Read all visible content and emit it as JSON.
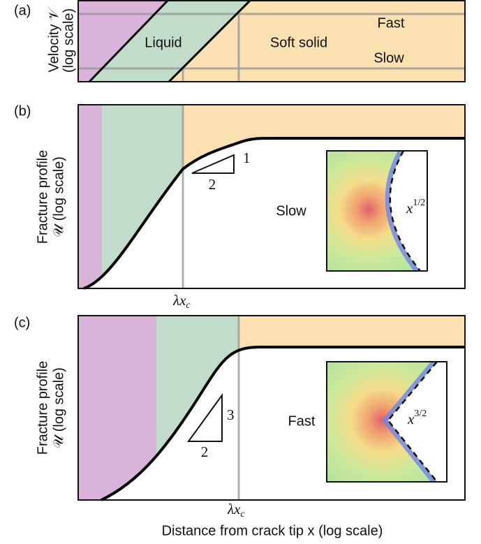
{
  "panels": [
    {
      "label": "(a)",
      "y_label": [
        "Velocity 𝒱",
        "(log scale)"
      ],
      "regions": [
        "Liquid",
        "Soft solid"
      ],
      "regimes": [
        "Fast",
        "Slow"
      ]
    },
    {
      "label": "(b)",
      "y_label": [
        "Fracture profile",
        "𝒰 (log scale)"
      ],
      "slope": {
        "rise": "1",
        "run": "2"
      },
      "marker": {
        "base": "λx",
        "sub": "c"
      },
      "inset": {
        "regime": "Slow",
        "exponent": {
          "base": "x",
          "sup": "1/2"
        }
      }
    },
    {
      "label": "(c)",
      "y_label": [
        "Fracture profile",
        "𝒰 (log scale)"
      ],
      "slope": {
        "rise": "3",
        "run": "2"
      },
      "marker": {
        "base": "λx",
        "sub": "c"
      },
      "inset": {
        "regime": "Fast",
        "exponent": {
          "base": "x",
          "sup": "3/2"
        }
      }
    }
  ],
  "x_label": "Distance from crack tip x (log scale)"
}
